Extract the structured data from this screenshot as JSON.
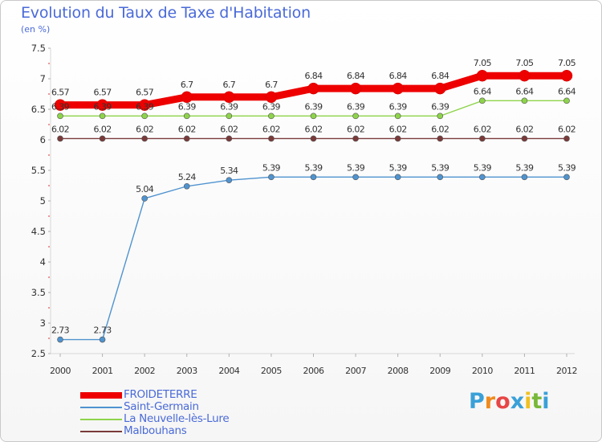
{
  "title": "Evolution du Taux de Taxe d'Habitation",
  "subtitle": "(en %)",
  "logo": {
    "letters": [
      "P",
      "r",
      "o",
      "x",
      "i",
      "t",
      "i"
    ],
    "colors": [
      "#3aa0d8",
      "#f08a1c",
      "#e84646",
      "#3aa0d8",
      "#f0c020",
      "#78b838",
      "#3aa0d8"
    ]
  },
  "chart_data": {
    "type": "line",
    "title": "Evolution du Taux de Taxe d'Habitation",
    "ylabel": "(en %)",
    "xlabel": "",
    "x": [
      "2000",
      "2001",
      "2002",
      "2003",
      "2004",
      "2005",
      "2006",
      "2007",
      "2008",
      "2009",
      "2010",
      "2011",
      "2012"
    ],
    "ylim": [
      2.5,
      7.5
    ],
    "yticks": [
      2.5,
      3,
      3.5,
      4,
      4.5,
      5,
      5.5,
      6,
      6.5,
      7,
      7.5
    ],
    "ytick_labels": [
      "2.5",
      "3",
      "3.5",
      "4",
      "4.5",
      "5",
      "5.5",
      "6",
      "6.5",
      "7",
      "7.5"
    ],
    "grid": false,
    "legend_position": "bottom-left",
    "series": [
      {
        "name": "FROIDETERRE",
        "color": "#ee0000",
        "values": [
          6.57,
          6.57,
          6.57,
          6.7,
          6.7,
          6.7,
          6.84,
          6.84,
          6.84,
          6.84,
          7.05,
          7.05,
          7.05
        ],
        "labels": [
          "6.57",
          "6.57",
          "6.57",
          "6.7",
          "6.7",
          "6.7",
          "6.84",
          "6.84",
          "6.84",
          "6.84",
          "7.05",
          "7.05",
          "7.05"
        ]
      },
      {
        "name": "Saint-Germain",
        "color": "#4f93cf",
        "values": [
          2.73,
          2.73,
          5.04,
          5.24,
          5.34,
          5.39,
          5.39,
          5.39,
          5.39,
          5.39,
          5.39,
          5.39,
          5.39
        ],
        "labels": [
          "2.73",
          "2.73",
          "5.04",
          "5.24",
          "5.34",
          "5.39",
          "5.39",
          "5.39",
          "5.39",
          "5.39",
          "5.39",
          "5.39",
          "5.39"
        ]
      },
      {
        "name": "La Neuvelle-lès-Lure",
        "color": "#8ed44a",
        "values": [
          6.39,
          6.39,
          6.39,
          6.39,
          6.39,
          6.39,
          6.39,
          6.39,
          6.39,
          6.39,
          6.64,
          6.64,
          6.64
        ],
        "labels": [
          "6.39",
          "6.39",
          "6.39",
          "6.39",
          "6.39",
          "6.39",
          "6.39",
          "6.39",
          "6.39",
          "6.39",
          "6.64",
          "6.64",
          "6.64"
        ]
      },
      {
        "name": "Malbouhans",
        "color": "#7a3a3a",
        "values": [
          6.02,
          6.02,
          6.02,
          6.02,
          6.02,
          6.02,
          6.02,
          6.02,
          6.02,
          6.02,
          6.02,
          6.02,
          6.02
        ],
        "labels": [
          "6.02",
          "6.02",
          "6.02",
          "6.02",
          "6.02",
          "6.02",
          "6.02",
          "6.02",
          "6.02",
          "6.02",
          "6.02",
          "6.02",
          "6.02"
        ]
      }
    ]
  }
}
